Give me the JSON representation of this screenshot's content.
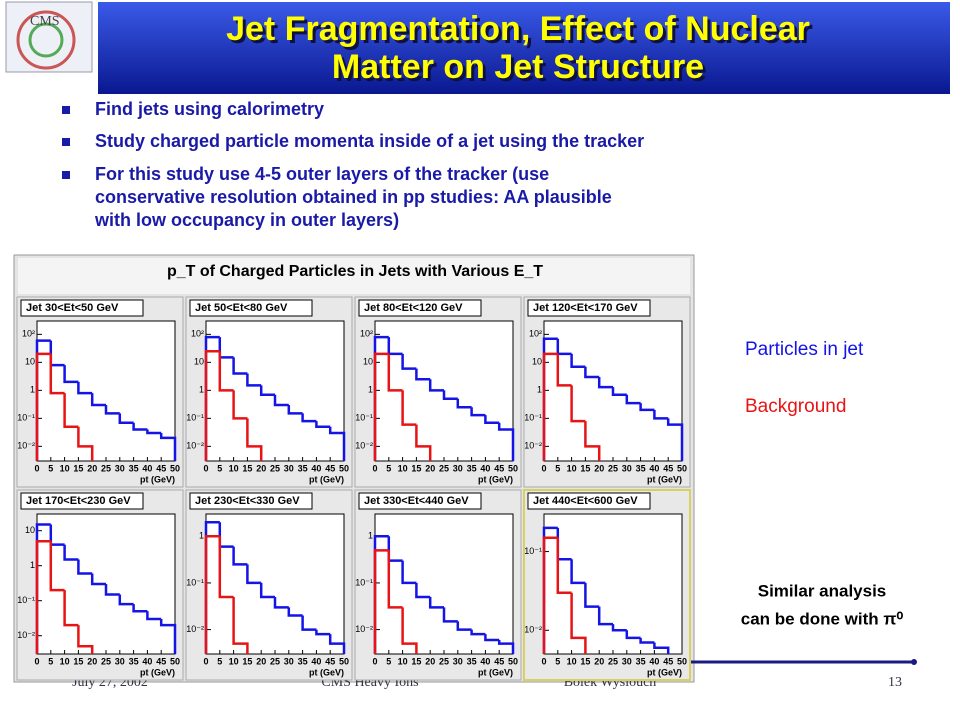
{
  "header": {
    "title": [
      "Jet Fragmentation, Effect of Nuclear",
      "Matter on Jet Structure"
    ]
  },
  "bullets": [
    [
      "Find jets using calorimetry"
    ],
    [
      "Study charged particle momenta inside of a jet using the tracker"
    ],
    [
      "For this study use 4-5 outer layers of the tracker (use",
      "conservative resolution obtained in pp studies: AA plausible",
      "with low occupancy in outer layers)"
    ]
  ],
  "figure": {
    "title": "p_T of Charged Particles in Jets with Various E_T"
  },
  "legend": [
    {
      "name": "Particles in jet",
      "color": "#1414e6"
    },
    {
      "name": "Background",
      "color": "#e61414"
    }
  ],
  "chart_data": [
    {
      "type": "histogram",
      "title": "Jet 30<Et<50 GeV",
      "x_label": "pt (GeV)",
      "ylog": true,
      "bins": [
        0,
        5,
        10,
        15,
        20,
        25,
        30,
        35,
        40,
        45,
        50
      ],
      "xlim": [
        0,
        50
      ],
      "xticks": [
        0,
        5,
        10,
        15,
        20,
        25,
        30,
        35,
        40,
        45,
        50
      ],
      "ylim": [
        0.003,
        300
      ],
      "yticks": [
        {
          "value": 0.01,
          "label": "10⁻²"
        },
        {
          "value": 0.1,
          "label": "10⁻¹"
        },
        1,
        10,
        {
          "value": 100,
          "label": "10²"
        }
      ],
      "series": [
        {
          "values": [
            60,
            8,
            2,
            0.8,
            0.3,
            0.15,
            0.07,
            0.04,
            0.03,
            0.02
          ]
        },
        {
          "values": [
            20,
            0.8,
            0.05,
            0.01,
            null,
            null,
            null,
            null,
            null,
            null
          ]
        }
      ]
    },
    {
      "type": "histogram",
      "title": "Jet 50<Et<80 GeV",
      "x_label": "pt (GeV)",
      "ylog": true,
      "bins": [
        0,
        5,
        10,
        15,
        20,
        25,
        30,
        35,
        40,
        45,
        50
      ],
      "xlim": [
        0,
        50
      ],
      "xticks": [
        0,
        5,
        10,
        15,
        20,
        25,
        30,
        35,
        40,
        45,
        50
      ],
      "ylim": [
        0.003,
        300
      ],
      "yticks": [
        {
          "value": 0.01,
          "label": "10⁻²"
        },
        {
          "value": 0.1,
          "label": "10⁻¹"
        },
        1,
        10,
        {
          "value": 100,
          "label": "10²"
        }
      ],
      "series": [
        {
          "values": [
            80,
            15,
            4,
            1.5,
            0.7,
            0.3,
            0.15,
            0.08,
            0.05,
            0.03
          ]
        },
        {
          "values": [
            25,
            1,
            0.1,
            0.01,
            null,
            null,
            null,
            null,
            null,
            null
          ]
        }
      ]
    },
    {
      "type": "histogram",
      "title": "Jet 80<Et<120 GeV",
      "x_label": "pt (GeV)",
      "ylog": true,
      "bins": [
        0,
        5,
        10,
        15,
        20,
        25,
        30,
        35,
        40,
        45,
        50
      ],
      "xlim": [
        0,
        50
      ],
      "xticks": [
        0,
        5,
        10,
        15,
        20,
        25,
        30,
        35,
        40,
        45,
        50
      ],
      "ylim": [
        0.003,
        300
      ],
      "yticks": [
        {
          "value": 0.01,
          "label": "10⁻²"
        },
        {
          "value": 0.1,
          "label": "10⁻¹"
        },
        1,
        10,
        {
          "value": 100,
          "label": "10²"
        }
      ],
      "series": [
        {
          "values": [
            80,
            20,
            6,
            2.5,
            1,
            0.5,
            0.25,
            0.13,
            0.07,
            0.04
          ]
        },
        {
          "values": [
            20,
            1,
            0.06,
            0.01,
            null,
            null,
            null,
            null,
            null,
            null
          ]
        }
      ]
    },
    {
      "type": "histogram",
      "title": "Jet 120<Et<170 GeV",
      "x_label": "pt (GeV)",
      "ylog": true,
      "bins": [
        0,
        5,
        10,
        15,
        20,
        25,
        30,
        35,
        40,
        45,
        50
      ],
      "xlim": [
        0,
        50
      ],
      "xticks": [
        0,
        5,
        10,
        15,
        20,
        25,
        30,
        35,
        40,
        45,
        50
      ],
      "ylim": [
        0.003,
        300
      ],
      "yticks": [
        {
          "value": 0.01,
          "label": "10⁻²"
        },
        {
          "value": 0.1,
          "label": "10⁻¹"
        },
        1,
        10,
        {
          "value": 100,
          "label": "10²"
        }
      ],
      "series": [
        {
          "values": [
            70,
            20,
            7,
            3,
            1.3,
            0.7,
            0.35,
            0.2,
            0.1,
            0.06
          ]
        },
        {
          "values": [
            20,
            1.5,
            0.08,
            0.01,
            null,
            null,
            null,
            null,
            null,
            null
          ]
        }
      ]
    },
    {
      "type": "histogram",
      "title": "Jet 170<Et<230 GeV",
      "x_label": "pt (GeV)",
      "ylog": true,
      "bins": [
        0,
        5,
        10,
        15,
        20,
        25,
        30,
        35,
        40,
        45,
        50
      ],
      "xlim": [
        0,
        50
      ],
      "xticks": [
        0,
        5,
        10,
        15,
        20,
        25,
        30,
        35,
        40,
        45,
        50
      ],
      "ylim": [
        0.003,
        30
      ],
      "yticks": [
        {
          "value": 0.01,
          "label": "10⁻²"
        },
        {
          "value": 0.1,
          "label": "10⁻¹"
        },
        1,
        10
      ],
      "series": [
        {
          "values": [
            15,
            4,
            1.5,
            0.6,
            0.3,
            0.15,
            0.08,
            0.05,
            0.03,
            0.02
          ]
        },
        {
          "values": [
            5,
            0.2,
            0.02,
            0.005,
            null,
            null,
            null,
            null,
            null,
            null
          ]
        }
      ]
    },
    {
      "type": "histogram",
      "title": "Jet 230<Et<330 GeV",
      "x_label": "pt (GeV)",
      "ylog": true,
      "bins": [
        0,
        5,
        10,
        15,
        20,
        25,
        30,
        35,
        40,
        45,
        50
      ],
      "xlim": [
        0,
        50
      ],
      "xticks": [
        0,
        5,
        10,
        15,
        20,
        25,
        30,
        35,
        40,
        45,
        50
      ],
      "ylim": [
        0.003,
        3
      ],
      "yticks": [
        {
          "value": 0.01,
          "label": "10⁻²"
        },
        {
          "value": 0.1,
          "label": "10⁻¹"
        },
        1
      ],
      "series": [
        {
          "values": [
            2,
            0.6,
            0.25,
            0.1,
            0.05,
            0.03,
            0.02,
            0.01,
            0.008,
            0.005
          ]
        },
        {
          "values": [
            1,
            0.05,
            0.005,
            null,
            null,
            null,
            null,
            null,
            null,
            null
          ]
        }
      ]
    },
    {
      "type": "histogram",
      "title": "Jet 330<Et<440 GeV",
      "x_label": "pt (GeV)",
      "ylog": true,
      "bins": [
        0,
        5,
        10,
        15,
        20,
        25,
        30,
        35,
        40,
        45,
        50
      ],
      "xlim": [
        0,
        50
      ],
      "xticks": [
        0,
        5,
        10,
        15,
        20,
        25,
        30,
        35,
        40,
        45,
        50
      ],
      "ylim": [
        0.003,
        3
      ],
      "yticks": [
        {
          "value": 0.01,
          "label": "10⁻²"
        },
        {
          "value": 0.1,
          "label": "10⁻¹"
        },
        1
      ],
      "series": [
        {
          "values": [
            1,
            0.3,
            0.1,
            0.05,
            0.03,
            0.015,
            0.01,
            0.008,
            0.006,
            0.005
          ]
        },
        {
          "values": [
            0.5,
            0.03,
            0.005,
            null,
            null,
            null,
            null,
            null,
            null,
            null
          ]
        }
      ]
    },
    {
      "type": "histogram",
      "title": "Jet 440<Et<600 GeV",
      "x_label": "pt (GeV)",
      "ylog": true,
      "bins": [
        0,
        5,
        10,
        15,
        20,
        25,
        30,
        35,
        40,
        45,
        50
      ],
      "xlim": [
        0,
        50
      ],
      "xticks": [
        0,
        5,
        10,
        15,
        20,
        25,
        30,
        35,
        40,
        45,
        50
      ],
      "ylim": [
        0.005,
        0.3
      ],
      "yticks": [
        {
          "value": 0.01,
          "label": "10⁻²"
        },
        {
          "value": 0.1,
          "label": "10⁻¹"
        }
      ],
      "series": [
        {
          "values": [
            0.2,
            0.08,
            0.04,
            0.02,
            0.012,
            0.01,
            0.008,
            0.007,
            0.006,
            null
          ]
        },
        {
          "values": [
            0.15,
            0.03,
            0.008,
            null,
            null,
            null,
            null,
            null,
            null,
            null
          ]
        }
      ]
    }
  ],
  "note": [
    "Similar analysis",
    "can be done with π⁰"
  ],
  "footer": {
    "date": "July 27, 2002",
    "event": "CMS Heavy Ions",
    "author": "Bolek Wyslouch",
    "page": "13"
  }
}
